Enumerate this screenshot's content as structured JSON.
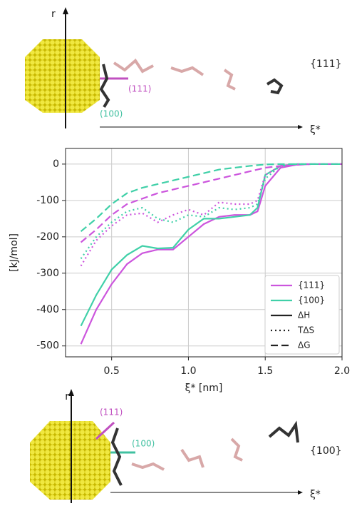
{
  "chart_data": {
    "type": "line",
    "ylabel": "[kJ/mol]",
    "xlabel": "ξ* [nm]",
    "xlim": [
      0.2,
      2.0
    ],
    "ylim": [
      -530,
      43
    ],
    "xticks": [
      0.5,
      {
        "value": 1,
        "label": "1.0"
      },
      1.5,
      {
        "value": 2,
        "label": "2.0"
      }
    ],
    "yticks": [
      0,
      -100,
      -200,
      -300,
      -400,
      -500
    ],
    "grid": true,
    "legend": [
      {
        "label": "{111}",
        "color": "#cc55dd",
        "dash": "solid"
      },
      {
        "label": "{100}",
        "color": "#40d0a8",
        "dash": "solid"
      },
      {
        "label": "ΔH",
        "color": "#222222",
        "dash": "solid"
      },
      {
        "label": "TΔS",
        "color": "#222222",
        "dash": "dotted"
      },
      {
        "label": "ΔG",
        "color": "#222222",
        "dash": "dashed"
      }
    ],
    "x": [
      0.3,
      0.4,
      0.5,
      0.6,
      0.7,
      0.8,
      0.9,
      1.0,
      1.1,
      1.2,
      1.3,
      1.4,
      1.45,
      1.5,
      1.6,
      1.7,
      1.8,
      1.9,
      2.0
    ],
    "series": [
      {
        "color": "#cc55dd",
        "dash": "solid",
        "values": [
          -495,
          -400,
          -330,
          -275,
          -245,
          -235,
          -235,
          -200,
          -165,
          -145,
          -140,
          -140,
          -130,
          -60,
          -10,
          -2,
          0,
          0,
          0
        ]
      },
      {
        "color": "#40d0a8",
        "dash": "solid",
        "values": [
          -445,
          -360,
          -290,
          -250,
          -225,
          -232,
          -230,
          -180,
          -150,
          -150,
          -145,
          -140,
          -120,
          -30,
          -5,
          0,
          0,
          0,
          0
        ]
      },
      {
        "color": "#cc55dd",
        "dash": "dotted",
        "values": [
          -280,
          -210,
          -170,
          -140,
          -135,
          -160,
          -140,
          -125,
          -140,
          -105,
          -110,
          -110,
          -100,
          -30,
          -5,
          0,
          0,
          0,
          0
        ]
      },
      {
        "color": "#40d0a8",
        "dash": "dotted",
        "values": [
          -260,
          -200,
          -160,
          -130,
          -120,
          -150,
          -160,
          -140,
          -145,
          -120,
          -125,
          -120,
          -110,
          -40,
          -5,
          0,
          0,
          0,
          0
        ]
      },
      {
        "color": "#cc55dd",
        "dash": "dashed",
        "values": [
          -215,
          -180,
          -140,
          -110,
          -95,
          -80,
          -70,
          -60,
          -50,
          -40,
          -30,
          -20,
          -15,
          -10,
          -5,
          -2,
          0,
          0,
          0
        ]
      },
      {
        "color": "#40d0a8",
        "dash": "dashed",
        "values": [
          -185,
          -150,
          -110,
          -80,
          -65,
          -55,
          -45,
          -35,
          -25,
          -15,
          -10,
          -5,
          -3,
          -1,
          0,
          0,
          0,
          0,
          0
        ]
      }
    ]
  },
  "top_panel": {
    "axis_r": "r",
    "axis_xi": "ξ*",
    "facet": "{111}",
    "label_111": "(111)",
    "label_100": "(100)"
  },
  "bottom_panel": {
    "axis_r": "r",
    "axis_xi": "ξ*",
    "facet": "{100}",
    "label_111": "(111)",
    "label_100": "(100)"
  }
}
